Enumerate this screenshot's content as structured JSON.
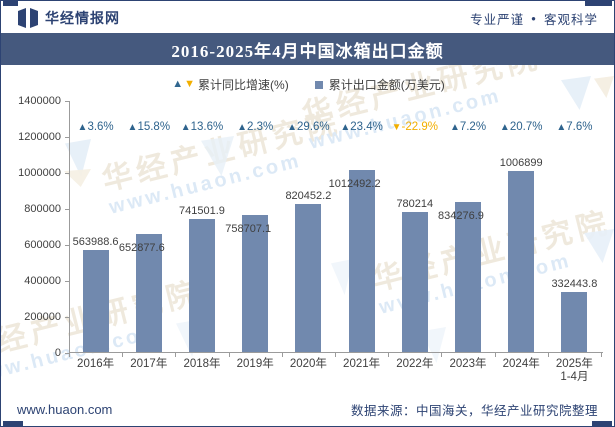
{
  "header": {
    "brand": "华经情报网",
    "tagline_left": "专业严谨",
    "tagline_separator": "●",
    "tagline_right": "客观科学"
  },
  "title": "2016-2025年4月中国冰箱出口金额",
  "legend": {
    "growth_label": "累计同比增速(%)",
    "amount_label": "累计出口金额(万美元)"
  },
  "chart_data": {
    "type": "bar",
    "title": "2016-2025年4月中国冰箱出口金额",
    "categories": [
      "2016年",
      "2017年",
      "2018年",
      "2019年",
      "2020年",
      "2021年",
      "2022年",
      "2023年",
      "2024年",
      "2025年\n1-4月"
    ],
    "series": [
      {
        "name": "累计出口金额(万美元)",
        "values": [
          563988.6,
          652877.6,
          741501.9,
          758707.1,
          820452.2,
          1012492.2,
          780214,
          834276.9,
          1006899,
          332443.8
        ],
        "labels": [
          "563988.6",
          "652877.6",
          "741501.9",
          "758707.1",
          "820452.2",
          "1012492.2",
          "780214",
          "834276.9",
          "1006899",
          "332443.8"
        ]
      },
      {
        "name": "累计同比增速(%)",
        "values": [
          3.6,
          15.8,
          13.6,
          2.3,
          29.6,
          23.4,
          -22.9,
          7.2,
          20.7,
          7.6
        ],
        "labels": [
          "3.6%",
          "15.8%",
          "13.6%",
          "2.3%",
          "29.6%",
          "23.4%",
          "-22.9%",
          "7.2%",
          "20.7%",
          "7.6%"
        ]
      }
    ],
    "ylim": [
      0,
      1400000
    ],
    "ytick_step": 200000,
    "ytick_labels": [
      "0",
      "200000",
      "400000",
      "600000",
      "800000",
      "1000000",
      "1200000",
      "1400000"
    ],
    "grid": false,
    "legend_position": "top"
  },
  "colors": {
    "bar": "#7189ae",
    "growth_up": "#2e638d",
    "growth_down": "#f2af00",
    "navy": "#2d4373",
    "title_band": "#45597e",
    "axis": "#9b9b9b",
    "watermark_cn": "#efe9dd",
    "watermark_en": "#dce9f6"
  },
  "watermark": {
    "cn": "华经产业研究院",
    "en": "www.huaon.com"
  },
  "footer": {
    "website": "www.huaon.com",
    "source": "数据来源：中国海关，华经产业研究院整理"
  }
}
